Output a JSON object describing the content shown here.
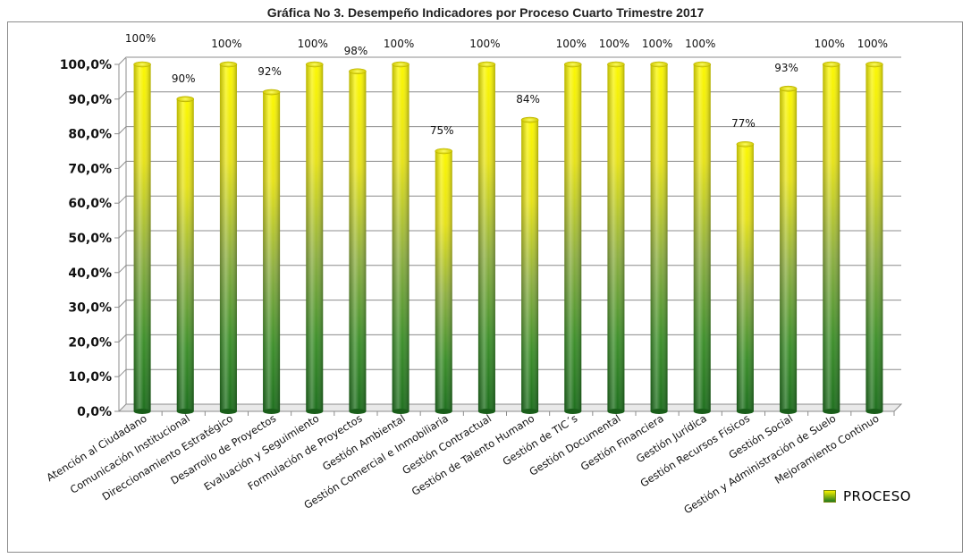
{
  "chart_data": {
    "type": "bar",
    "title": "Gráfica No 3. Desempeño  Indicadores por Proceso Cuarto Trimestre 2017",
    "categories": [
      "Atención al Ciudadano",
      "Comunicación Institucional",
      "Direccionamiento Estratégico",
      "Desarrollo de Proyectos",
      "Evaluación y Seguimiento",
      "Formulación de Proyectos",
      "Gestión Ambiental",
      "Gestión Comercial e Inmobiliaria",
      "Gestión Contractual",
      "Gestión de Talento Humano",
      "Gestión de TIC´s",
      "Gestión Documental",
      "Gestión Financiera",
      "Gestión Jurídica",
      "Gestión Recursos Físicos",
      "Gestión Social",
      "Gestión y Administración  de Suelo",
      "Mejoramiento Continuo"
    ],
    "series": [
      {
        "name": "PROCESO",
        "values": [
          100,
          90,
          100,
          92,
          100,
          98,
          100,
          75,
          100,
          84,
          100,
          100,
          100,
          100,
          77,
          93,
          100,
          100
        ],
        "data_labels": [
          "100%",
          "90%",
          "100%",
          "92%",
          "100%",
          "98%",
          "100%",
          "75%",
          "100%",
          "84%",
          "100%",
          "100%",
          "100%",
          "100%",
          "77%",
          "93%",
          "100%",
          "100%"
        ]
      }
    ],
    "y_ticks": [
      "0,0%",
      "10,0%",
      "20,0%",
      "30,0%",
      "40,0%",
      "50,0%",
      "60,0%",
      "70,0%",
      "80,0%",
      "90,0%",
      "100,0%"
    ],
    "ylim": [
      0,
      100
    ],
    "xlabel": "",
    "ylabel": "",
    "grid": true,
    "legend_position": "bottom-right",
    "colors": {
      "bar_top": "#f7f200",
      "bar_bottom": "#1f7a1f",
      "grid": "#8c8c8c"
    }
  }
}
